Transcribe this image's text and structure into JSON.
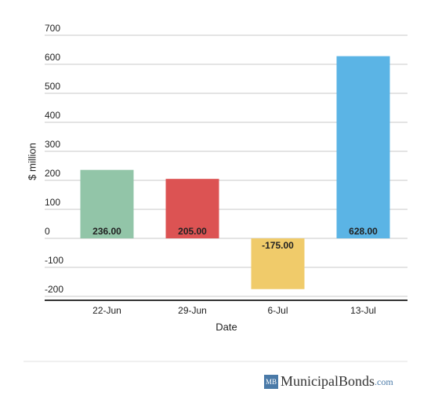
{
  "chart_data": {
    "type": "bar",
    "x_label": "Date",
    "y_label": "$ million",
    "categories": [
      "22-Jun",
      "29-Jun",
      "6-Jul",
      "13-Jul"
    ],
    "values": [
      236,
      205,
      -175,
      628
    ],
    "value_labels": [
      "236.00",
      "205.00",
      "-175.00",
      "628.00"
    ],
    "colors": [
      "#92c5a8",
      "#dc5353",
      "#f0cb6a",
      "#5bb4e5"
    ],
    "ylim": [
      -200,
      700
    ],
    "yticks": [
      -200,
      -100,
      0,
      100,
      200,
      300,
      400,
      500,
      600,
      700
    ],
    "grid": true
  },
  "footer": {
    "logo_mark": "MB",
    "brand": "MunicipalBonds",
    "domain": ".com"
  }
}
